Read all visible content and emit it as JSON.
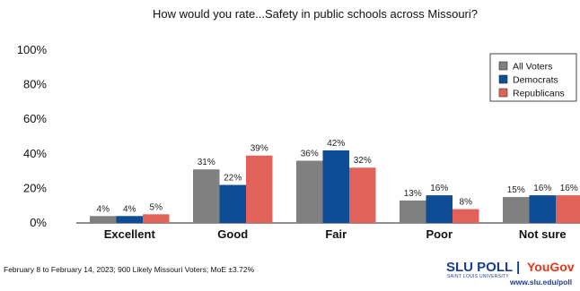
{
  "chart_data": {
    "type": "bar",
    "title": "How would you rate...Safety in public schools across Missouri?",
    "categories": [
      "Excellent",
      "Good",
      "Fair",
      "Poor",
      "Not sure"
    ],
    "series": [
      {
        "name": "All Voters",
        "color": "#808080",
        "values": [
          4,
          31,
          36,
          13,
          15
        ],
        "labels": [
          "4%",
          "31%",
          "36%",
          "13%",
          "15%"
        ]
      },
      {
        "name": "Democrats",
        "color": "#0e4c96",
        "values": [
          4,
          22,
          42,
          16,
          16
        ],
        "labels": [
          "4%",
          "22%",
          "42%",
          "16%",
          "16%"
        ]
      },
      {
        "name": "Republicans",
        "color": "#e06259",
        "values": [
          5,
          39,
          32,
          8,
          16
        ],
        "labels": [
          "5%",
          "39%",
          "32%",
          "8%",
          "16%"
        ]
      }
    ],
    "yticks": [
      "0%",
      "20%",
      "40%",
      "60%",
      "80%",
      "100%"
    ],
    "ylim": [
      0,
      100
    ],
    "grid": false,
    "legend_position": "top-right"
  },
  "footnote": "February 8 to February 14, 2023; 900 Likely Missouri Voters; MoE ±3.72%",
  "logo": {
    "slu": "SLU POLL",
    "slu_sub": "SAINT LOUIS UNIVERSITY",
    "divider": "|",
    "yougov": "YouGov",
    "url": "www.slu.edu/poll"
  }
}
